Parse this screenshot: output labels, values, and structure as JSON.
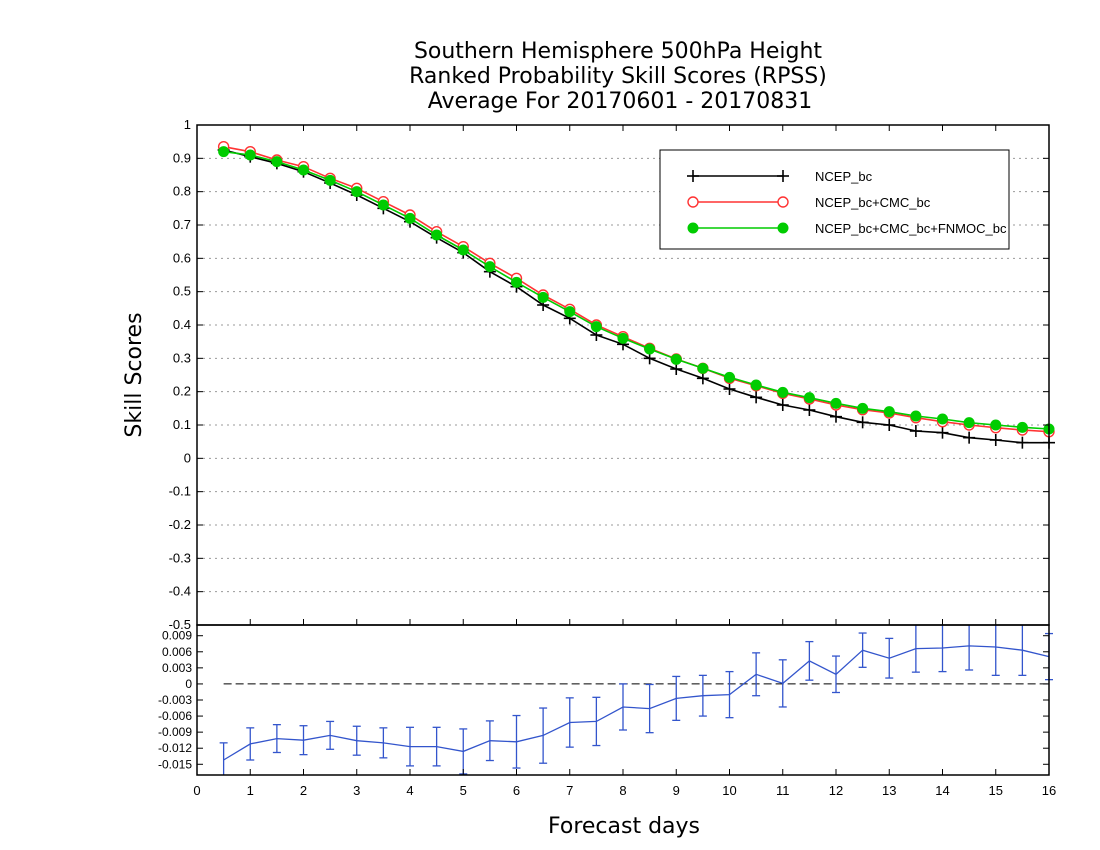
{
  "title": {
    "line1": "Southern Hemisphere 500hPa Height",
    "line2": "Ranked Probability Skill Scores (RPSS)",
    "line3": "Average For 20170601 - 20170831"
  },
  "chart_data": [
    {
      "type": "line",
      "ylabel": "Skill Scores",
      "xlim": [
        0,
        16
      ],
      "ylim": [
        -0.5,
        1
      ],
      "grid": true,
      "legend_position": "top-right",
      "x_ticks": [
        "0",
        "1",
        "2",
        "3",
        "4",
        "5",
        "6",
        "7",
        "8",
        "9",
        "10",
        "11",
        "12",
        "13",
        "14",
        "15",
        "16"
      ],
      "y_ticks": [
        "1",
        "0.9",
        "0.8",
        "0.7",
        "0.6",
        "0.5",
        "0.4",
        "0.3",
        "0.2",
        "0.1",
        "0",
        "-0.1",
        "-0.2",
        "-0.3",
        "-0.4",
        "-0.5"
      ],
      "x": [
        0.5,
        1,
        1.5,
        2,
        2.5,
        3,
        3.5,
        4,
        4.5,
        5,
        5.5,
        6,
        6.5,
        7,
        7.5,
        8,
        8.5,
        9,
        9.5,
        10,
        10.5,
        11,
        11.5,
        12,
        12.5,
        13,
        13.5,
        14,
        14.5,
        15,
        15.5,
        16
      ],
      "series": [
        {
          "name": "NCEP_bc",
          "color": "#000000",
          "marker": "plus",
          "values": [
            0.925,
            0.905,
            0.885,
            0.86,
            0.826,
            0.79,
            0.75,
            0.71,
            0.662,
            0.617,
            0.56,
            0.515,
            0.46,
            0.42,
            0.37,
            0.342,
            0.3,
            0.268,
            0.24,
            0.208,
            0.183,
            0.16,
            0.145,
            0.125,
            0.108,
            0.1,
            0.082,
            0.077,
            0.062,
            0.055,
            0.047,
            0.047
          ]
        },
        {
          "name": "NCEP_bc+CMC_bc",
          "color": "#ff3333",
          "marker": "open-circle",
          "values": [
            0.935,
            0.92,
            0.895,
            0.875,
            0.84,
            0.81,
            0.77,
            0.73,
            0.68,
            0.635,
            0.585,
            0.54,
            0.49,
            0.447,
            0.4,
            0.365,
            0.33,
            0.298,
            0.27,
            0.24,
            0.218,
            0.195,
            0.178,
            0.16,
            0.146,
            0.136,
            0.122,
            0.11,
            0.1,
            0.092,
            0.085,
            0.08
          ]
        },
        {
          "name": "NCEP_bc+CMC_bc+FNMOC_bc",
          "color": "#00cc00",
          "marker": "filled-circle",
          "values": [
            0.92,
            0.91,
            0.89,
            0.865,
            0.834,
            0.8,
            0.76,
            0.72,
            0.67,
            0.625,
            0.575,
            0.528,
            0.483,
            0.44,
            0.395,
            0.36,
            0.328,
            0.297,
            0.27,
            0.243,
            0.22,
            0.198,
            0.182,
            0.165,
            0.15,
            0.14,
            0.127,
            0.118,
            0.107,
            0.1,
            0.093,
            0.088
          ]
        }
      ]
    },
    {
      "type": "line",
      "xlabel": "Forecast days",
      "xlim": [
        0,
        16
      ],
      "ylim": [
        -0.017,
        0.011
      ],
      "reference_line": 0,
      "y_ticks": [
        "0.009",
        "0.006",
        "0.003",
        "0",
        "-0.003",
        "-0.006",
        "-0.009",
        "-0.012",
        "-0.015"
      ],
      "series": [
        {
          "color": "#3355cc",
          "error_bars": true,
          "x": [
            0.5,
            1,
            1.5,
            2,
            2.5,
            3,
            3.5,
            4,
            4.5,
            5,
            5.5,
            6,
            6.5,
            7,
            7.5,
            8,
            8.5,
            9,
            9.5,
            10,
            10.5,
            11,
            11.5,
            12,
            12.5,
            13,
            13.5,
            14,
            14.5,
            15,
            15.5,
            16
          ],
          "values": [
            -0.0142,
            -0.0112,
            -0.0102,
            -0.0105,
            -0.0096,
            -0.0106,
            -0.011,
            -0.0117,
            -0.0117,
            -0.0126,
            -0.0106,
            -0.0108,
            -0.0096,
            -0.0072,
            -0.007,
            -0.0043,
            -0.0046,
            -0.0027,
            -0.0022,
            -0.002,
            0.0018,
            0.0001,
            0.0043,
            0.0018,
            0.0063,
            0.0048,
            0.0066,
            0.0067,
            0.0071,
            0.0069,
            0.0063,
            0.0051
          ],
          "lower": [
            -0.0172,
            -0.0142,
            -0.0128,
            -0.0132,
            -0.0122,
            -0.0133,
            -0.0138,
            -0.0153,
            -0.0153,
            -0.0168,
            -0.0143,
            -0.0157,
            -0.0148,
            -0.0118,
            -0.0115,
            -0.0086,
            -0.0091,
            -0.0068,
            -0.006,
            -0.0063,
            -0.0022,
            -0.0043,
            0.0007,
            -0.0016,
            0.0031,
            0.0011,
            0.0022,
            0.0023,
            0.0026,
            0.0016,
            0.0016,
            0.0008
          ],
          "upper": [
            -0.011,
            -0.0082,
            -0.0076,
            -0.0078,
            -0.007,
            -0.0079,
            -0.0082,
            -0.0081,
            -0.0081,
            -0.0084,
            -0.0069,
            -0.0059,
            -0.0045,
            -0.0026,
            -0.0025,
            0.0,
            -0.0001,
            0.0014,
            0.0016,
            0.0023,
            0.0058,
            0.0045,
            0.0079,
            0.0052,
            0.0095,
            0.0085,
            0.011,
            0.011,
            0.011,
            0.011,
            0.011,
            0.0094
          ]
        }
      ]
    }
  ]
}
